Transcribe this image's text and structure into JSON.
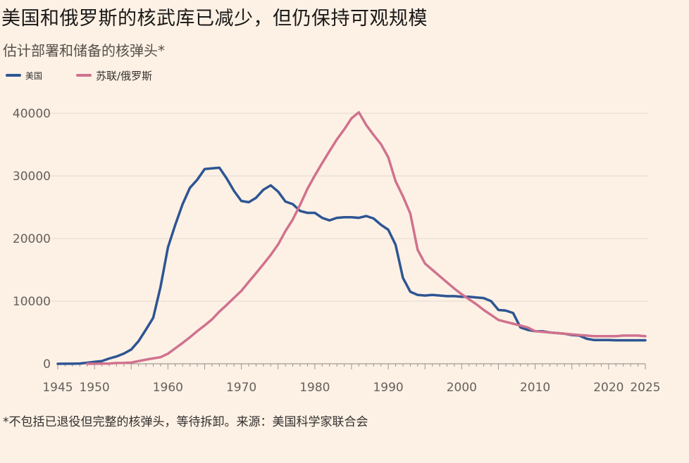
{
  "title": "美国和俄罗斯的核武库已减少，但仍保持可观规模",
  "subtitle": "估计部署和储备的核弹头*",
  "legend": {
    "us": "美国",
    "ru": "苏联/俄罗斯"
  },
  "footnote": "*不包括已退役但完整的核弹头，等待拆卸。来源：美国科学家联合会",
  "colors": {
    "us": "#2d5593",
    "ru": "#d0728e",
    "grid": "#e3d9cf",
    "background": "#fdf1e5"
  },
  "chart_data": {
    "type": "line",
    "title": "美国和俄罗斯的核武库已减少，但仍保持可观规模",
    "xlabel": "",
    "ylabel": "估计部署和储备的核弹头*",
    "xlim": [
      1945,
      2025
    ],
    "ylim": [
      0,
      40000
    ],
    "yticks": [
      0,
      10000,
      20000,
      30000,
      40000
    ],
    "xticks": [
      1945,
      1950,
      1960,
      1970,
      1980,
      1990,
      2000,
      2010,
      2020,
      2025
    ],
    "series": [
      {
        "name": "美国",
        "color": "#2d5593",
        "x": [
          1945,
          1946,
          1947,
          1948,
          1949,
          1950,
          1951,
          1952,
          1953,
          1954,
          1955,
          1956,
          1957,
          1958,
          1959,
          1960,
          1961,
          1962,
          1963,
          1964,
          1965,
          1966,
          1967,
          1968,
          1969,
          1970,
          1971,
          1972,
          1973,
          1974,
          1975,
          1976,
          1977,
          1978,
          1979,
          1980,
          1981,
          1982,
          1983,
          1984,
          1985,
          1986,
          1987,
          1988,
          1989,
          1990,
          1991,
          1992,
          1993,
          1994,
          1995,
          1996,
          1997,
          1998,
          1999,
          2000,
          2001,
          2002,
          2003,
          2004,
          2005,
          2006,
          2007,
          2008,
          2009,
          2010,
          2011,
          2012,
          2013,
          2014,
          2015,
          2016,
          2017,
          2018,
          2019,
          2020,
          2021,
          2022,
          2023,
          2024,
          2025
        ],
        "values": [
          2,
          9,
          13,
          50,
          170,
          300,
          440,
          840,
          1170,
          1630,
          2280,
          3620,
          5450,
          7350,
          12300,
          18600,
          22200,
          25500,
          28100,
          29400,
          31100,
          31200,
          31300,
          29600,
          27600,
          26000,
          25800,
          26500,
          27800,
          28500,
          27500,
          25900,
          25500,
          24400,
          24100,
          24100,
          23300,
          22900,
          23300,
          23400,
          23400,
          23300,
          23600,
          23200,
          22200,
          21400,
          19000,
          13700,
          11500,
          11000,
          10900,
          11000,
          10900,
          10800,
          10800,
          10700,
          10700,
          10600,
          10500,
          10000,
          8600,
          8500,
          8100,
          5800,
          5400,
          5200,
          5200,
          5000,
          4900,
          4800,
          4600,
          4500,
          4000,
          3800,
          3800,
          3800,
          3750,
          3750,
          3750,
          3750,
          3748
        ]
      },
      {
        "name": "苏联/俄罗斯",
        "color": "#d0728e",
        "x": [
          1949,
          1950,
          1951,
          1952,
          1953,
          1954,
          1955,
          1956,
          1957,
          1958,
          1959,
          1960,
          1961,
          1962,
          1963,
          1964,
          1965,
          1966,
          1967,
          1968,
          1969,
          1970,
          1971,
          1972,
          1973,
          1974,
          1975,
          1976,
          1977,
          1978,
          1979,
          1980,
          1981,
          1982,
          1983,
          1984,
          1985,
          1986,
          1987,
          1988,
          1989,
          1990,
          1991,
          1992,
          1993,
          1994,
          1995,
          1996,
          1997,
          1998,
          1999,
          2000,
          2001,
          2002,
          2003,
          2004,
          2005,
          2006,
          2007,
          2008,
          2009,
          2010,
          2011,
          2012,
          2013,
          2014,
          2015,
          2016,
          2017,
          2018,
          2019,
          2020,
          2021,
          2022,
          2023,
          2024,
          2025
        ],
        "values": [
          1,
          5,
          25,
          50,
          120,
          150,
          200,
          426,
          660,
          869,
          1060,
          1605,
          2471,
          3322,
          4238,
          5221,
          6129,
          7089,
          8339,
          9399,
          10538,
          11643,
          13092,
          14478,
          15915,
          17385,
          19055,
          21205,
          23044,
          25393,
          27935,
          30062,
          32049,
          33952,
          35804,
          37431,
          39197,
          40159,
          38107,
          36538,
          35078,
          32980,
          29154,
          26734,
          24000,
          18200,
          16000,
          15000,
          14000,
          13000,
          12000,
          11100,
          10300,
          9500,
          8600,
          7800,
          7000,
          6700,
          6400,
          6100,
          5800,
          5200,
          5100,
          5000,
          4900,
          4800,
          4700,
          4600,
          4500,
          4400,
          4400,
          4400,
          4400,
          4500,
          4500,
          4500,
          4400
        ]
      }
    ]
  }
}
